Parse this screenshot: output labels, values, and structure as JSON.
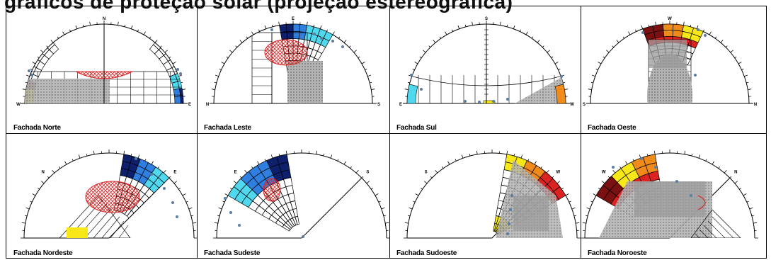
{
  "title": "gráficos de proteção solar (projeção estereográfica)",
  "colors": {
    "grid": "#000000",
    "mask": "#9a9a9a",
    "red": "#dd2222",
    "dark_red": "#7a1010",
    "orange": "#f08a1a",
    "yellow": "#f8e818",
    "navy": "#0e1f6b",
    "blue": "#2f7fe0",
    "cyan": "#4fd8ee",
    "dot": "#5a7ea0"
  },
  "panels": [
    {
      "caption": "Fachada Norte",
      "left": "W",
      "top": "N",
      "right": "E",
      "angle": 90
    },
    {
      "caption": "Fachada Leste",
      "left": "N",
      "top": "E",
      "right": "S",
      "angle": 90
    },
    {
      "caption": "Fachada Sul",
      "left": "E",
      "top": "S",
      "right": "W",
      "angle": 90
    },
    {
      "caption": "Fachada Oeste",
      "left": "S",
      "top": "W",
      "right": "N",
      "angle": 90
    },
    {
      "caption": "Fachada Nordeste",
      "left": "N",
      "top": "",
      "right": "E",
      "angle": 45
    },
    {
      "caption": "Fachada Sudeste",
      "left": "E",
      "top": "",
      "right": "S",
      "angle": 45
    },
    {
      "caption": "Fachada Sudoeste",
      "left": "S",
      "top": "",
      "right": "W",
      "angle": 45
    },
    {
      "caption": "Fachada Noroeste",
      "left": "W",
      "top": "",
      "right": "N",
      "angle": 45
    }
  ]
}
